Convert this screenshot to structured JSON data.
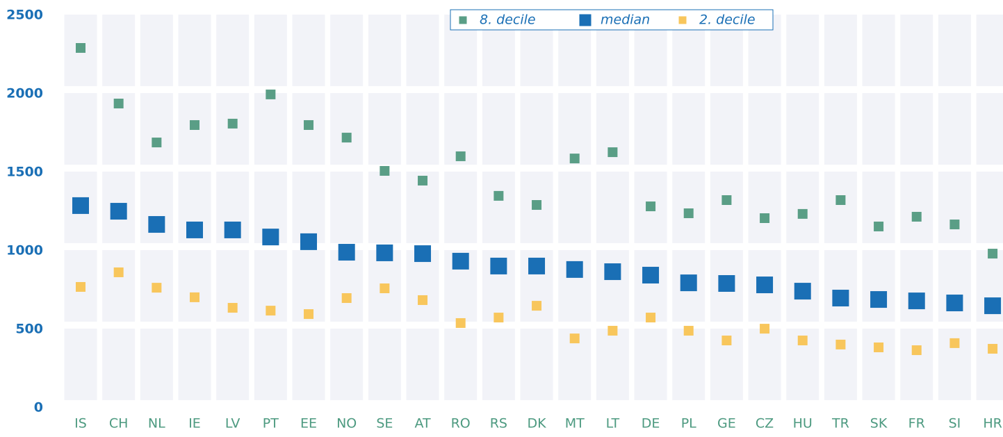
{
  "chart_data": {
    "type": "dot",
    "categories": [
      "IS",
      "CH",
      "NL",
      "IE",
      "LV",
      "PT",
      "EE",
      "NO",
      "SE",
      "AT",
      "RO",
      "RS",
      "DK",
      "MT",
      "LT",
      "DE",
      "PL",
      "GE",
      "CZ",
      "HU",
      "TR",
      "SK",
      "FR",
      "SI",
      "HR"
    ],
    "series": [
      {
        "name": "8. decile",
        "color": "#5a9e86",
        "values": [
          2292,
          1938,
          1690,
          1801,
          1810,
          1996,
          1801,
          1721,
          1509,
          1447,
          1602,
          1350,
          1292,
          1588,
          1628,
          1283,
          1239,
          1323,
          1208,
          1235,
          1323,
          1155,
          1217,
          1168,
          982
        ]
      },
      {
        "name": "median",
        "color": "#1a6fb5",
        "values": [
          1288,
          1252,
          1168,
          1133,
          1133,
          1088,
          1058,
          991,
          987,
          982,
          934,
          903,
          903,
          881,
          867,
          845,
          796,
          792,
          783,
          743,
          699,
          690,
          681,
          668,
          650
        ]
      },
      {
        "name": "2. decile",
        "color": "#f8c65c",
        "values": [
          770,
          863,
          765,
          704,
          637,
          619,
          597,
          699,
          761,
          686,
          540,
          575,
          650,
          442,
          491,
          575,
          491,
          429,
          504,
          429,
          403,
          385,
          367,
          412,
          376
        ]
      }
    ],
    "ylim": [
      0,
      2500
    ],
    "yticks": [
      0,
      500,
      1000,
      1500,
      2000,
      2500
    ],
    "grid": true,
    "legend": "top-right"
  }
}
